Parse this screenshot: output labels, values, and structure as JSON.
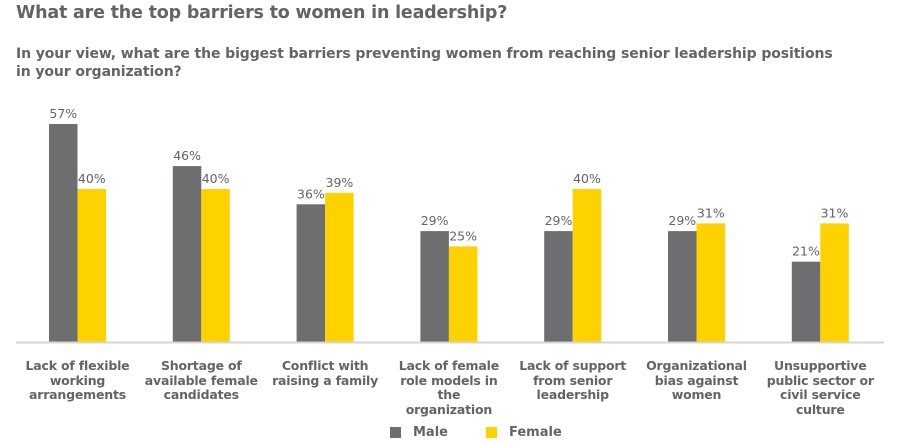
{
  "title": "What are the top barriers to women in leadership?",
  "subtitle": "In your view, what are the biggest barriers preventing women from reaching senior leadership positions in your organization?",
  "colors": {
    "male": "#6d6e70",
    "female": "#fdd200",
    "axis": "#d4d4d4",
    "text": "#646464"
  },
  "chart_data": {
    "type": "bar",
    "title": "What are the top barriers to women in leadership?",
    "xlabel": "",
    "ylabel": "",
    "ylim": [
      0,
      60
    ],
    "grid": false,
    "legend_position": "bottom",
    "value_suffix": "%",
    "categories": [
      "Lack of flexible working arrangements",
      "Shortage of available female candidates",
      "Conflict with raising a family",
      "Lack of female role models in the organization",
      "Lack of support from senior leadership",
      "Organizational bias against women",
      "Unsupportive public sector or civil service culture"
    ],
    "category_lines": [
      [
        "Lack of flexible",
        "working",
        "arrangements"
      ],
      [
        "Shortage of",
        "available female",
        "candidates"
      ],
      [
        "Conflict with",
        "raising a family"
      ],
      [
        "Lack of female",
        "role models in the",
        "organization"
      ],
      [
        "Lack of support",
        "from senior",
        "leadership"
      ],
      [
        "Organizational",
        "bias against",
        "women"
      ],
      [
        "Unsupportive",
        "public sector or",
        "civil service",
        "culture"
      ]
    ],
    "series": [
      {
        "name": "Male",
        "values": [
          57,
          46,
          36,
          29,
          29,
          29,
          21
        ],
        "labels": [
          "57%",
          "46%",
          "36%",
          "29%",
          "29%",
          "29%",
          "21%"
        ]
      },
      {
        "name": "Female",
        "values": [
          40,
          40,
          39,
          25,
          40,
          31,
          31
        ],
        "labels": [
          "40%",
          "40%",
          "39%",
          "25%",
          "40%",
          "31%",
          "31%"
        ]
      }
    ]
  },
  "legend": [
    {
      "label": "Male"
    },
    {
      "label": "Female"
    }
  ]
}
